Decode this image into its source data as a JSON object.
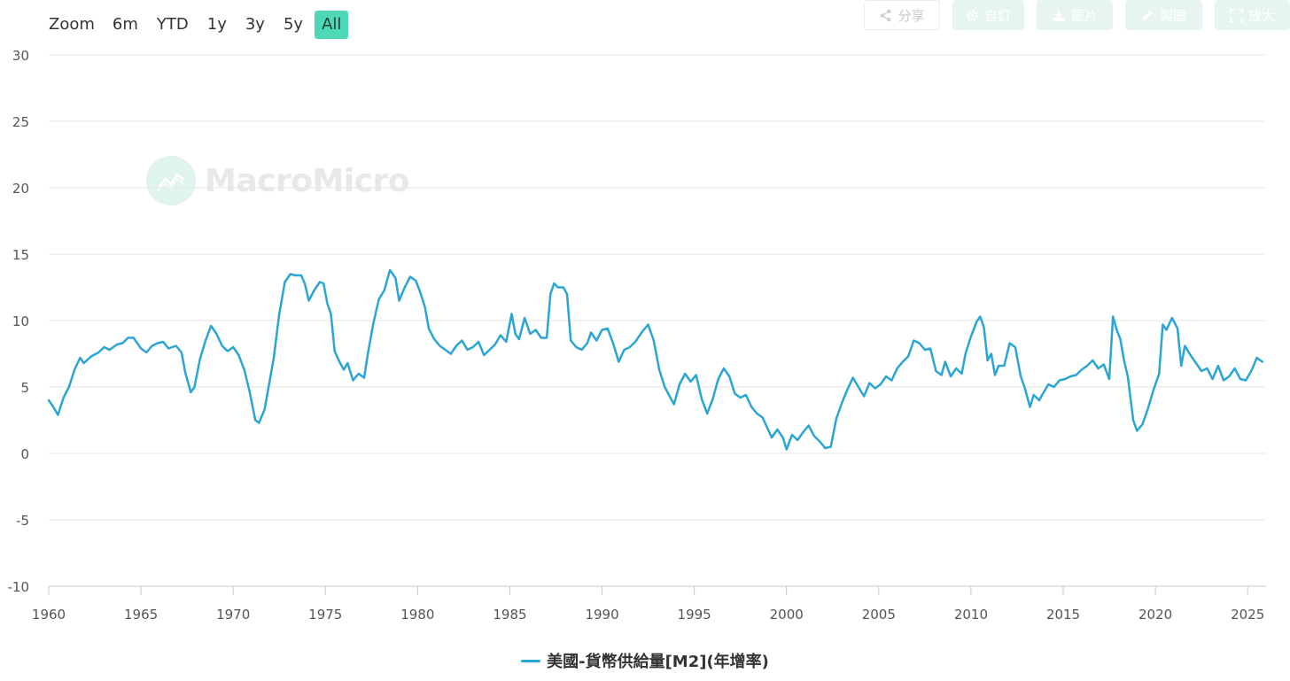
{
  "zoom": {
    "label": "Zoom",
    "buttons": [
      "6m",
      "YTD",
      "1y",
      "3y",
      "5y",
      "All"
    ],
    "active": "All"
  },
  "toolbar": {
    "share": "分享",
    "custom": "自訂",
    "image": "圖片",
    "draw": "製圖",
    "enlarge": "放大"
  },
  "watermark": "MacroMicro",
  "colors": {
    "series": "#2ba5d3",
    "active_zoom": "#4fd8b5",
    "grid": "#e6e6e6"
  },
  "chart_data": {
    "type": "line",
    "title": "",
    "xlabel": "",
    "ylabel": "",
    "xlim": [
      1960,
      2026
    ],
    "ylim": [
      -10,
      30
    ],
    "x_ticks": [
      1960,
      1965,
      1970,
      1975,
      1980,
      1985,
      1990,
      1995,
      2000,
      2005,
      2010,
      2015,
      2020,
      2025
    ],
    "y_ticks": [
      30,
      25,
      20,
      15,
      10,
      5,
      0,
      -5,
      -10
    ],
    "grid": true,
    "legend_position": "bottom",
    "series": [
      {
        "name": "美國-貨幣供給量[M2](年增率)",
        "color": "#2ba5d3",
        "points": [
          [
            1960.0,
            4.0
          ],
          [
            1960.2,
            3.6
          ],
          [
            1960.5,
            2.9
          ],
          [
            1960.8,
            4.2
          ],
          [
            1961.1,
            5.0
          ],
          [
            1961.4,
            6.3
          ],
          [
            1961.7,
            7.2
          ],
          [
            1961.9,
            6.8
          ],
          [
            1962.3,
            7.3
          ],
          [
            1962.7,
            7.6
          ],
          [
            1963.0,
            8.0
          ],
          [
            1963.3,
            7.8
          ],
          [
            1963.7,
            8.2
          ],
          [
            1964.0,
            8.3
          ],
          [
            1964.3,
            8.7
          ],
          [
            1964.6,
            8.7
          ],
          [
            1965.0,
            7.9
          ],
          [
            1965.3,
            7.6
          ],
          [
            1965.6,
            8.1
          ],
          [
            1965.9,
            8.3
          ],
          [
            1966.2,
            8.4
          ],
          [
            1966.5,
            7.9
          ],
          [
            1966.9,
            8.1
          ],
          [
            1967.2,
            7.6
          ],
          [
            1967.4,
            6.1
          ],
          [
            1967.7,
            4.6
          ],
          [
            1967.9,
            5.0
          ],
          [
            1968.2,
            7.1
          ],
          [
            1968.5,
            8.5
          ],
          [
            1968.8,
            9.6
          ],
          [
            1969.1,
            9.0
          ],
          [
            1969.4,
            8.1
          ],
          [
            1969.7,
            7.7
          ],
          [
            1970.0,
            8.0
          ],
          [
            1970.3,
            7.4
          ],
          [
            1970.6,
            6.3
          ],
          [
            1970.9,
            4.6
          ],
          [
            1971.2,
            2.5
          ],
          [
            1971.4,
            2.3
          ],
          [
            1971.7,
            3.3
          ],
          [
            1972.0,
            5.6
          ],
          [
            1972.2,
            7.2
          ],
          [
            1972.5,
            10.5
          ],
          [
            1972.8,
            12.9
          ],
          [
            1973.1,
            13.5
          ],
          [
            1973.4,
            13.4
          ],
          [
            1973.7,
            13.4
          ],
          [
            1973.9,
            12.7
          ],
          [
            1974.1,
            11.5
          ],
          [
            1974.4,
            12.3
          ],
          [
            1974.7,
            12.9
          ],
          [
            1974.9,
            12.8
          ],
          [
            1975.1,
            11.3
          ],
          [
            1975.3,
            10.5
          ],
          [
            1975.5,
            7.7
          ],
          [
            1975.8,
            6.8
          ],
          [
            1976.0,
            6.3
          ],
          [
            1976.2,
            6.8
          ],
          [
            1976.5,
            5.5
          ],
          [
            1976.8,
            6.0
          ],
          [
            1977.1,
            5.7
          ],
          [
            1977.3,
            7.5
          ],
          [
            1977.6,
            9.8
          ],
          [
            1977.9,
            11.6
          ],
          [
            1978.2,
            12.3
          ],
          [
            1978.5,
            13.8
          ],
          [
            1978.8,
            13.2
          ],
          [
            1979.0,
            11.5
          ],
          [
            1979.3,
            12.5
          ],
          [
            1979.6,
            13.3
          ],
          [
            1979.9,
            13.0
          ],
          [
            1980.1,
            12.3
          ],
          [
            1980.4,
            11.0
          ],
          [
            1980.6,
            9.4
          ],
          [
            1980.9,
            8.6
          ],
          [
            1981.2,
            8.1
          ],
          [
            1981.5,
            7.8
          ],
          [
            1981.8,
            7.5
          ],
          [
            1982.1,
            8.1
          ],
          [
            1982.4,
            8.5
          ],
          [
            1982.7,
            7.8
          ],
          [
            1983.0,
            8.0
          ],
          [
            1983.3,
            8.4
          ],
          [
            1983.6,
            7.4
          ],
          [
            1983.9,
            7.8
          ],
          [
            1984.2,
            8.2
          ],
          [
            1984.5,
            8.9
          ],
          [
            1984.8,
            8.4
          ],
          [
            1985.1,
            10.5
          ],
          [
            1985.3,
            9.0
          ],
          [
            1985.5,
            8.6
          ],
          [
            1985.8,
            10.2
          ],
          [
            1986.1,
            9.0
          ],
          [
            1986.4,
            9.3
          ],
          [
            1986.7,
            8.7
          ],
          [
            1987.0,
            8.7
          ],
          [
            1987.2,
            12.0
          ],
          [
            1987.4,
            12.8
          ],
          [
            1987.6,
            12.5
          ],
          [
            1987.9,
            12.5
          ],
          [
            1988.1,
            12.0
          ],
          [
            1988.3,
            8.5
          ],
          [
            1988.6,
            8.0
          ],
          [
            1988.9,
            7.8
          ],
          [
            1989.2,
            8.3
          ],
          [
            1989.4,
            9.1
          ],
          [
            1989.7,
            8.5
          ],
          [
            1990.0,
            9.3
          ],
          [
            1990.3,
            9.4
          ],
          [
            1990.6,
            8.3
          ],
          [
            1990.9,
            6.9
          ],
          [
            1991.2,
            7.8
          ],
          [
            1991.5,
            8.0
          ],
          [
            1991.8,
            8.4
          ],
          [
            1992.2,
            9.2
          ],
          [
            1992.5,
            9.7
          ],
          [
            1992.8,
            8.5
          ],
          [
            1993.1,
            6.3
          ],
          [
            1993.4,
            5.0
          ],
          [
            1993.7,
            4.2
          ],
          [
            1993.9,
            3.7
          ],
          [
            1994.2,
            5.2
          ],
          [
            1994.5,
            6.0
          ],
          [
            1994.8,
            5.4
          ],
          [
            1995.1,
            5.9
          ],
          [
            1995.4,
            4.1
          ],
          [
            1995.7,
            3.0
          ],
          [
            1996.0,
            4.1
          ],
          [
            1996.3,
            5.6
          ],
          [
            1996.6,
            6.4
          ],
          [
            1996.9,
            5.8
          ],
          [
            1997.2,
            4.5
          ],
          [
            1997.5,
            4.2
          ],
          [
            1997.8,
            4.4
          ],
          [
            1998.1,
            3.5
          ],
          [
            1998.4,
            3.0
          ],
          [
            1998.7,
            2.7
          ],
          [
            1999.0,
            1.8
          ],
          [
            1999.2,
            1.2
          ],
          [
            1999.5,
            1.8
          ],
          [
            1999.8,
            1.2
          ],
          [
            2000.0,
            0.3
          ],
          [
            2000.3,
            1.4
          ],
          [
            2000.6,
            1.0
          ],
          [
            2000.9,
            1.6
          ],
          [
            2001.2,
            2.1
          ],
          [
            2001.5,
            1.3
          ],
          [
            2001.8,
            0.9
          ],
          [
            2002.1,
            0.4
          ],
          [
            2002.4,
            0.5
          ],
          [
            2002.7,
            2.6
          ],
          [
            2003.0,
            3.8
          ],
          [
            2003.3,
            4.8
          ],
          [
            2003.6,
            5.7
          ],
          [
            2003.9,
            5.0
          ],
          [
            2004.2,
            4.3
          ],
          [
            2004.5,
            5.3
          ],
          [
            2004.8,
            4.9
          ],
          [
            2005.1,
            5.2
          ],
          [
            2005.4,
            5.8
          ],
          [
            2005.7,
            5.5
          ],
          [
            2006.0,
            6.4
          ],
          [
            2006.3,
            6.9
          ],
          [
            2006.6,
            7.3
          ],
          [
            2006.9,
            8.5
          ],
          [
            2007.2,
            8.3
          ],
          [
            2007.5,
            7.8
          ],
          [
            2007.8,
            7.9
          ],
          [
            2008.1,
            6.2
          ],
          [
            2008.4,
            5.9
          ],
          [
            2008.6,
            6.9
          ],
          [
            2008.9,
            5.8
          ],
          [
            2009.2,
            6.4
          ],
          [
            2009.5,
            6.0
          ],
          [
            2009.7,
            7.5
          ],
          [
            2010.0,
            8.8
          ],
          [
            2010.3,
            9.9
          ],
          [
            2010.5,
            10.3
          ],
          [
            2010.7,
            9.5
          ],
          [
            2010.9,
            7.0
          ],
          [
            2011.1,
            7.5
          ],
          [
            2011.3,
            5.9
          ],
          [
            2011.5,
            6.6
          ],
          [
            2011.8,
            6.6
          ],
          [
            2012.1,
            8.3
          ],
          [
            2012.4,
            8.0
          ],
          [
            2012.7,
            5.8
          ],
          [
            2012.9,
            5.0
          ],
          [
            2013.2,
            3.5
          ],
          [
            2013.4,
            4.4
          ],
          [
            2013.7,
            4.0
          ],
          [
            2013.9,
            4.5
          ],
          [
            2014.2,
            5.2
          ],
          [
            2014.5,
            5.0
          ],
          [
            2014.8,
            5.5
          ],
          [
            2015.1,
            5.6
          ],
          [
            2015.4,
            5.8
          ],
          [
            2015.7,
            5.9
          ],
          [
            2016.0,
            6.3
          ],
          [
            2016.3,
            6.6
          ],
          [
            2016.6,
            7.0
          ],
          [
            2016.9,
            6.4
          ],
          [
            2017.2,
            6.7
          ],
          [
            2017.5,
            5.6
          ],
          [
            2017.7,
            10.3
          ],
          [
            2017.9,
            9.3
          ],
          [
            2018.1,
            8.6
          ],
          [
            2018.3,
            7.0
          ],
          [
            2018.5,
            5.8
          ],
          [
            2018.8,
            2.5
          ],
          [
            2019.0,
            1.7
          ],
          [
            2019.3,
            2.2
          ],
          [
            2019.6,
            3.4
          ],
          [
            2019.9,
            4.8
          ],
          [
            2020.2,
            6.0
          ],
          [
            2020.4,
            9.7
          ],
          [
            2020.6,
            9.3
          ],
          [
            2020.9,
            10.2
          ],
          [
            2021.2,
            9.4
          ],
          [
            2021.4,
            6.6
          ],
          [
            2021.6,
            8.1
          ],
          [
            2021.9,
            7.4
          ],
          [
            2022.2,
            6.8
          ],
          [
            2022.5,
            6.2
          ],
          [
            2022.8,
            6.4
          ],
          [
            2023.1,
            5.6
          ],
          [
            2023.4,
            6.6
          ],
          [
            2023.7,
            5.5
          ],
          [
            2024.0,
            5.8
          ],
          [
            2024.3,
            6.4
          ],
          [
            2024.6,
            5.6
          ],
          [
            2024.9,
            5.5
          ],
          [
            2025.2,
            6.2
          ],
          [
            2025.5,
            7.2
          ],
          [
            2025.8,
            6.9
          ]
        ]
      }
    ]
  }
}
